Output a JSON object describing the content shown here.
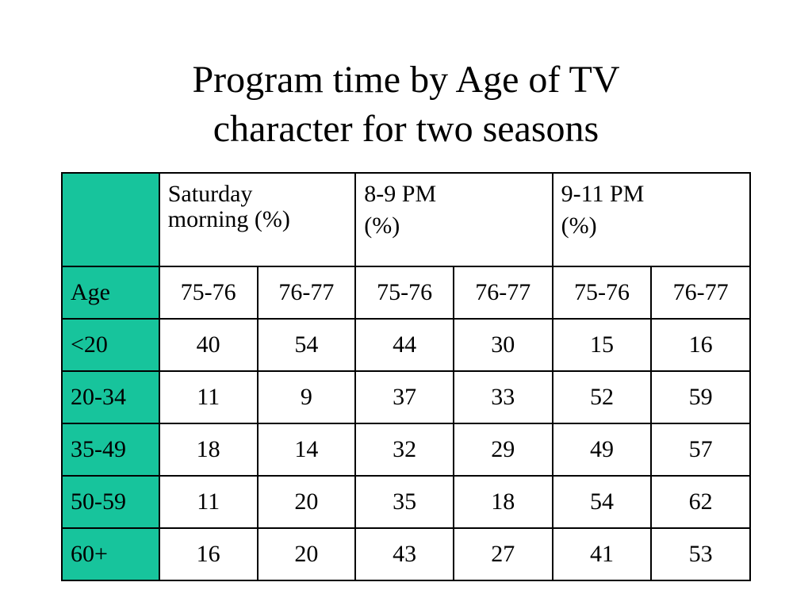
{
  "title": {
    "line1": "Program time by Age of TV",
    "line2": "character for two seasons"
  },
  "table": {
    "groups": [
      {
        "line1": "Saturday",
        "line2": "morning (%)"
      },
      {
        "line1": "8-9 PM",
        "line2": "(%)"
      },
      {
        "line1": "9-11 PM",
        "line2": "(%)"
      }
    ],
    "age_label": "Age",
    "seasons": [
      "75-76",
      "76-77",
      "75-76",
      "76-77",
      "75-76",
      "76-77"
    ],
    "rows": [
      {
        "age": "<20",
        "values": [
          "40",
          "54",
          "44",
          "30",
          "15",
          "16"
        ]
      },
      {
        "age": "20-34",
        "values": [
          "11",
          "9",
          "37",
          "33",
          "52",
          "59"
        ]
      },
      {
        "age": "35-49",
        "values": [
          "18",
          "14",
          "32",
          "29",
          "49",
          "57"
        ]
      },
      {
        "age": "50-59",
        "values": [
          "11",
          "20",
          "35",
          "18",
          "54",
          "62"
        ]
      },
      {
        "age": "60+",
        "values": [
          "16",
          "20",
          "43",
          "27",
          "41",
          "53"
        ]
      }
    ],
    "accent_color": "#17c49c"
  }
}
